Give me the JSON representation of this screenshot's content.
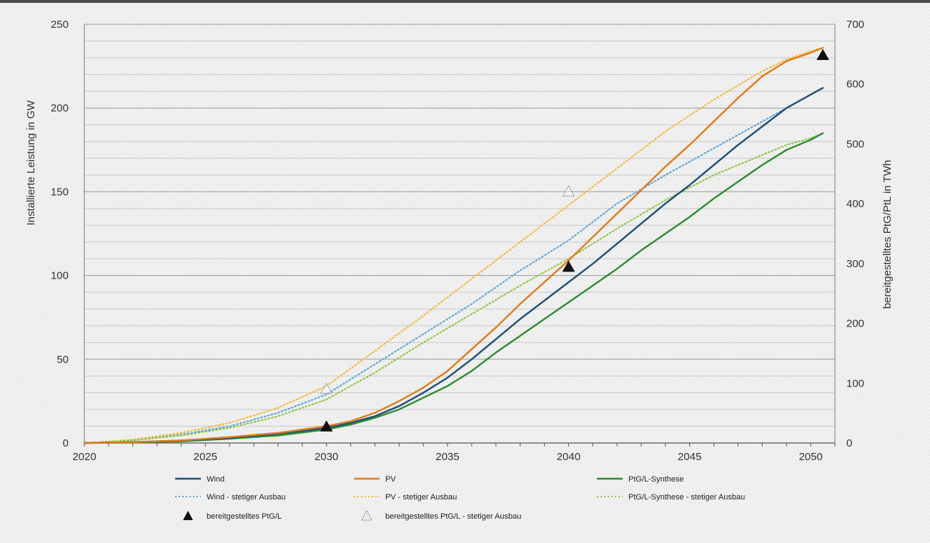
{
  "chart_data": {
    "type": "line",
    "title": "",
    "xlabel": "",
    "ylabel_left": "Installierte Leistung in GW",
    "ylabel_right": "bereitgestelltes PtG/PtL in TWh",
    "xlim": [
      2020,
      2051
    ],
    "ylim_left": [
      0,
      250
    ],
    "ylim_right": [
      0,
      700
    ],
    "x_ticks": [
      "2020",
      "2025",
      "2030",
      "2035",
      "2040",
      "2045",
      "2050"
    ],
    "y_ticks_left": [
      "0",
      "50",
      "100",
      "150",
      "200",
      "250"
    ],
    "y_ticks_right": [
      "0",
      "100",
      "200",
      "300",
      "400",
      "500",
      "600",
      "700"
    ],
    "grid": true,
    "legend_position": "bottom",
    "series": [
      {
        "name": "Wind",
        "color": "#1f4e79",
        "style": "solid",
        "axis": "left",
        "x": [
          2020,
          2022,
          2024,
          2026,
          2028,
          2030,
          2031,
          2032,
          2033,
          2034,
          2035,
          2036,
          2037,
          2038,
          2039,
          2040,
          2041,
          2042,
          2043,
          2044,
          2045,
          2046,
          2047,
          2048,
          2049,
          2050,
          2050.5
        ],
        "y": [
          0,
          0.5,
          1.5,
          3,
          5.5,
          9,
          12,
          16,
          22,
          30,
          39,
          50,
          62,
          74,
          85,
          96,
          107,
          119,
          131,
          143,
          154,
          166,
          178,
          189,
          200,
          208,
          212
        ]
      },
      {
        "name": "PV",
        "color": "#e07b1a",
        "style": "solid",
        "axis": "left",
        "x": [
          2020,
          2022,
          2024,
          2026,
          2028,
          2030,
          2031,
          2032,
          2033,
          2034,
          2035,
          2036,
          2037,
          2038,
          2039,
          2040,
          2041,
          2042,
          2043,
          2044,
          2045,
          2046,
          2047,
          2048,
          2049,
          2050,
          2050.5
        ],
        "y": [
          0,
          0.5,
          1.5,
          3.5,
          6,
          10,
          13,
          18,
          25,
          33,
          43,
          56,
          69,
          83,
          96,
          109,
          123,
          137,
          151,
          165,
          178,
          192,
          206,
          219,
          228,
          233,
          236
        ]
      },
      {
        "name": "PtG/L-Synthese",
        "color": "#2e8b2e",
        "style": "solid",
        "axis": "left",
        "x": [
          2020,
          2022,
          2024,
          2026,
          2028,
          2030,
          2031,
          2032,
          2033,
          2034,
          2035,
          2036,
          2037,
          2038,
          2039,
          2040,
          2041,
          2042,
          2043,
          2044,
          2045,
          2046,
          2047,
          2048,
          2049,
          2050,
          2050.5
        ],
        "y": [
          0,
          0.3,
          1,
          2.5,
          4.5,
          8,
          11,
          15,
          20,
          27,
          34,
          43,
          54,
          64,
          74,
          84,
          94,
          104,
          115,
          125,
          135,
          146,
          156,
          166,
          175,
          181,
          185
        ]
      },
      {
        "name": "Wind - stetiger Ausbau",
        "color": "#5ba3d9",
        "style": "dotted",
        "axis": "left",
        "x": [
          2020,
          2022,
          2024,
          2026,
          2028,
          2030,
          2032,
          2034,
          2036,
          2038,
          2040,
          2042,
          2044,
          2046,
          2048,
          2049,
          2050,
          2050.5
        ],
        "y": [
          0,
          1.5,
          5,
          10,
          18,
          29,
          47,
          65,
          83,
          103,
          121,
          143,
          160,
          176,
          192,
          200,
          208,
          212
        ]
      },
      {
        "name": "PV - stetiger Ausbau",
        "color": "#f2b93b",
        "style": "dotted",
        "axis": "left",
        "x": [
          2020,
          2022,
          2024,
          2026,
          2028,
          2030,
          2032,
          2034,
          2036,
          2038,
          2040,
          2042,
          2044,
          2046,
          2048,
          2049,
          2050,
          2050.5
        ],
        "y": [
          0,
          2,
          6,
          12,
          21,
          34,
          55,
          76,
          98,
          120,
          142,
          164,
          186,
          205,
          222,
          229,
          234,
          236
        ]
      },
      {
        "name": "PtG/L-Synthese - stetiger Ausbau",
        "color": "#8cc63f",
        "style": "dotted",
        "axis": "left",
        "x": [
          2020,
          2022,
          2024,
          2026,
          2028,
          2030,
          2032,
          2034,
          2036,
          2038,
          2040,
          2042,
          2044,
          2046,
          2048,
          2049,
          2050,
          2050.5
        ],
        "y": [
          0,
          1.5,
          4.5,
          9,
          16,
          26,
          42,
          60,
          77,
          94,
          110,
          128,
          145,
          160,
          172,
          178,
          182,
          185
        ]
      }
    ],
    "markers": [
      {
        "name": "bereitgestelltes PtG/L",
        "axis": "right",
        "filled": true,
        "x": [
          2030,
          2040,
          2050.5
        ],
        "y": [
          27,
          294,
          648
        ]
      },
      {
        "name": "bereitgestelltes PtG/L - stetiger Ausbau",
        "axis": "right",
        "filled": false,
        "x": [
          2030,
          2040
        ],
        "y": [
          90,
          420
        ]
      }
    ],
    "legend": [
      {
        "label": "Wind",
        "color": "#1f4e79",
        "kind": "line"
      },
      {
        "label": "PV",
        "color": "#e07b1a",
        "kind": "line"
      },
      {
        "label": "PtG/L-Synthese",
        "color": "#2e8b2e",
        "kind": "line"
      },
      {
        "label": "Wind - stetiger Ausbau",
        "color": "#5ba3d9",
        "kind": "dotted"
      },
      {
        "label": "PV - stetiger Ausbau",
        "color": "#f2b93b",
        "kind": "dotted"
      },
      {
        "label": "PtG/L-Synthese - stetiger Ausbau",
        "color": "#8cc63f",
        "kind": "dotted"
      },
      {
        "label": "bereitgestelltes PtG/L",
        "color": "#111111",
        "kind": "triangle-filled"
      },
      {
        "label": "bereitgestelltes PtG/L - stetiger Ausbau",
        "color": "#666666",
        "kind": "triangle-open"
      }
    ]
  }
}
